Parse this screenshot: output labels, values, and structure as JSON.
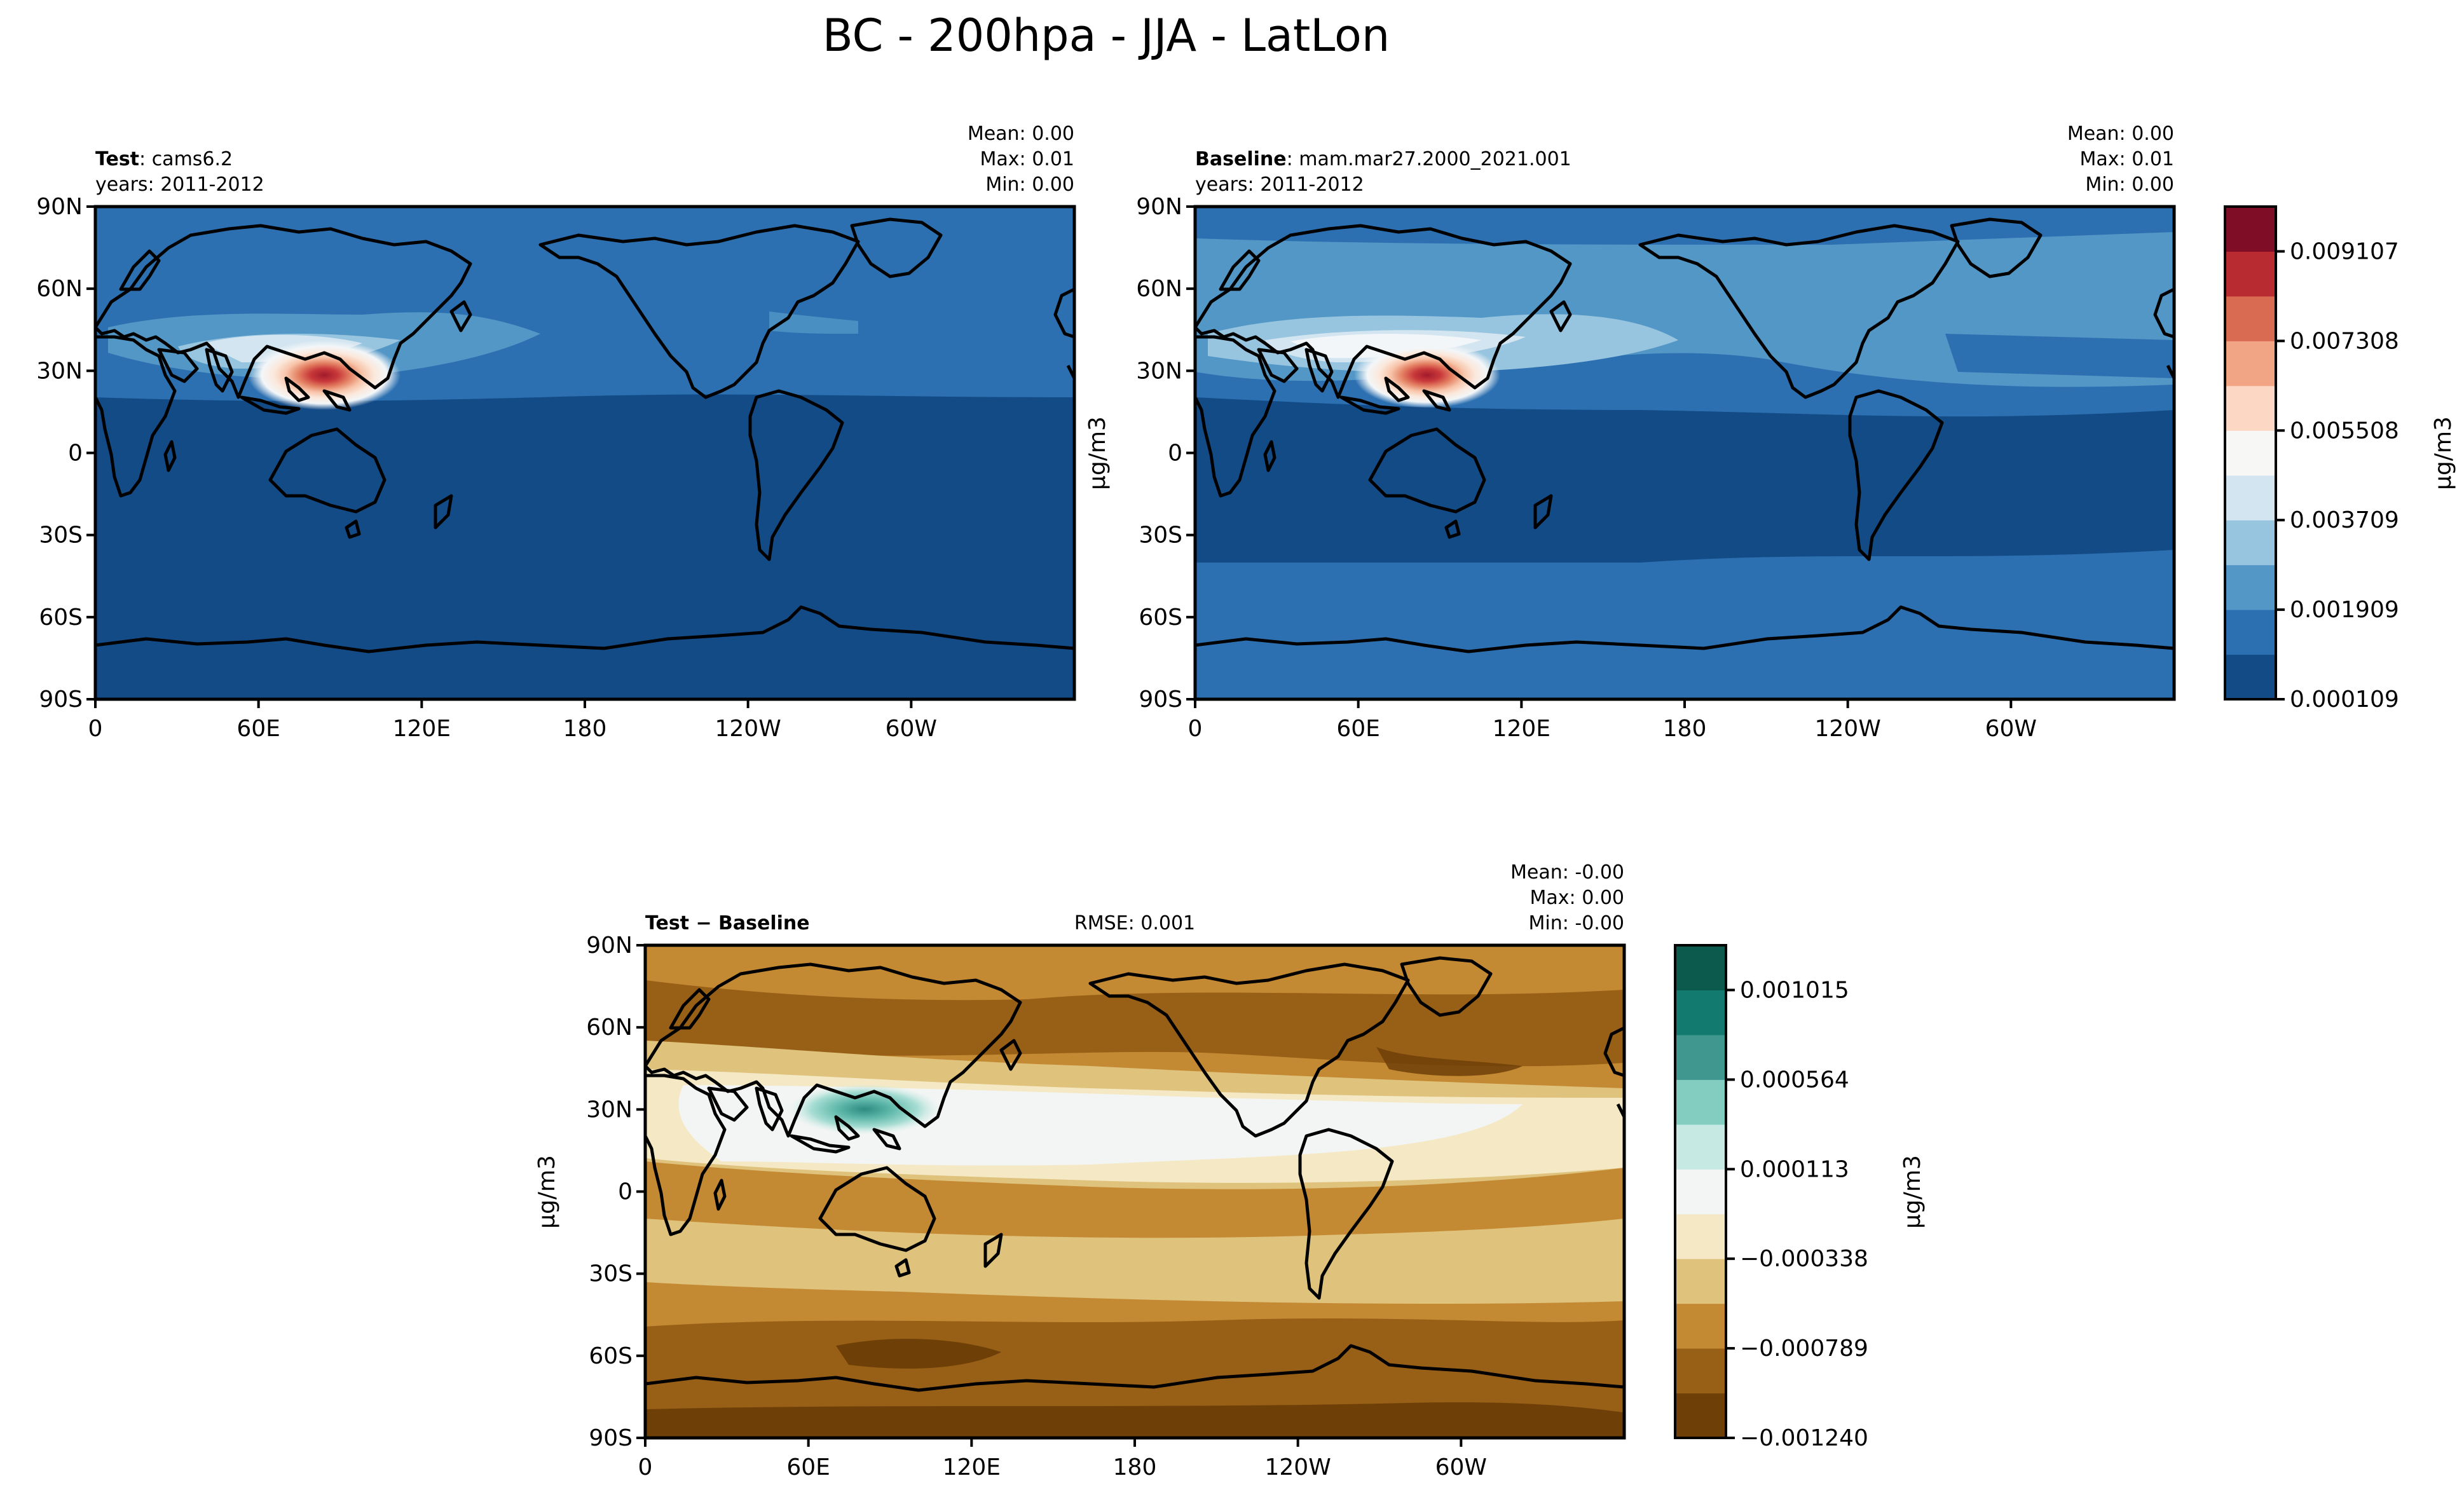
{
  "figure": {
    "title": "BC - 200hpa - JJA - LatLon"
  },
  "panels": {
    "test": {
      "label_bold": "Test",
      "label_sep": ": ",
      "label_value": "cams6.2",
      "years": "years: 2011-2012",
      "stats": {
        "mean": "Mean:  0.00",
        "max": "Max:  0.01",
        "min": "Min:  0.00"
      }
    },
    "baseline": {
      "label_bold": "Baseline",
      "label_sep": ": ",
      "label_value": "mam.mar27.2000_2021.001",
      "years": "years: 2011-2012",
      "stats": {
        "mean": "Mean:  0.00",
        "max": "Max:  0.01",
        "min": "Min:  0.00"
      }
    },
    "diff": {
      "label": "Test − Baseline",
      "rmse": "RMSE: 0.001",
      "stats": {
        "mean": "Mean: -0.00",
        "max": "Max:  0.00",
        "min": "Min: -0.00"
      }
    }
  },
  "colorbars": {
    "main": {
      "unit": "μg/m3",
      "tick_labels": [
        "0.000109",
        "0.001909",
        "0.003709",
        "0.005508",
        "0.007308",
        "0.009107"
      ],
      "colors": [
        "#134b87",
        "#2c70b1",
        "#5297c6",
        "#97c4df",
        "#d3e5f0",
        "#f7f7f6",
        "#fbd7c4",
        "#f2a585",
        "#d96b53",
        "#b82c31",
        "#800d26"
      ]
    },
    "diff": {
      "unit": "μg/m3",
      "tick_labels": [
        "−0.001240",
        "−0.000789",
        "−0.000338",
        "0.000113",
        "0.000564",
        "0.001015"
      ],
      "colors": [
        "#6e4008",
        "#985f16",
        "#c48933",
        "#dfc27b",
        "#f5e8c4",
        "#f3f5f4",
        "#c7e9e3",
        "#82cdc0",
        "#40978f",
        "#127a6e",
        "#0c5a4e"
      ]
    }
  },
  "chart_data": {
    "type": "heatmap",
    "title": "BC - 200hpa - JJA - LatLon",
    "variable": "BC",
    "level": "200hpa",
    "season": "JJA",
    "projection": "LatLon",
    "ylabel": "μg/m3",
    "x_ticks": [
      "0",
      "60E",
      "120E",
      "180",
      "120W",
      "60W"
    ],
    "y_ticks": [
      "90N",
      "60N",
      "30N",
      "0",
      "30S",
      "60S",
      "90S"
    ],
    "x_range_deg": [
      0,
      360
    ],
    "y_range_deg": [
      -90,
      90
    ],
    "maps": [
      {
        "name": "Test",
        "case": "cams6.2",
        "years": "2011-2012",
        "mean": 0.0,
        "max": 0.01,
        "min": 0.0,
        "levels": [
          0.000109,
          0.001909,
          0.003709,
          0.005508,
          0.007308,
          0.009107
        ],
        "peak": {
          "lon": 85,
          "lat": 30
        }
      },
      {
        "name": "Baseline",
        "case": "mam.mar27.2000_2021.001",
        "years": "2011-2012",
        "mean": 0.0,
        "max": 0.01,
        "min": 0.0,
        "levels": [
          0.000109,
          0.001909,
          0.003709,
          0.005508,
          0.007308,
          0.009107
        ],
        "peak": {
          "lon": 85,
          "lat": 30
        }
      },
      {
        "name": "Test − Baseline",
        "rmse": 0.001,
        "mean": -0.0,
        "max": 0.0,
        "min": -0.0,
        "levels": [
          -0.00124,
          -0.000789,
          -0.000338,
          0.000113,
          0.000564,
          0.001015
        ],
        "peak": {
          "lon": 85,
          "lat": 32
        }
      }
    ]
  }
}
